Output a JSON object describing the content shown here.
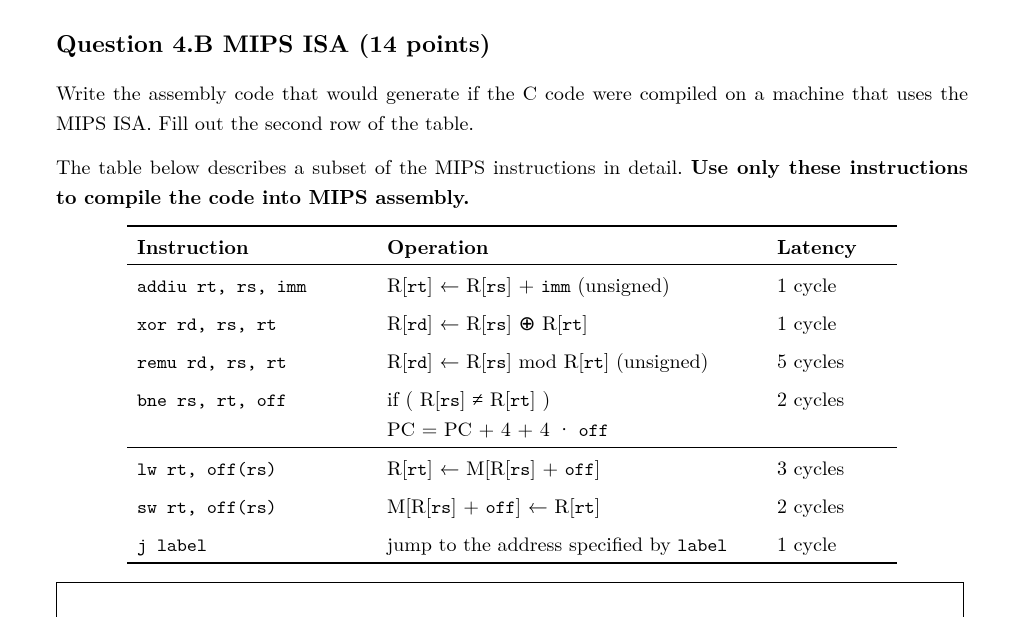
{
  "title_prefix": "Question 4.B MIPS ISA (",
  "title_points": "14 points",
  "title_suffix": ")",
  "para1": "Write the assembly code that would generate if the C code were compiled on a machine that uses the MIPS ISA. Fill out the second row of the table.",
  "para2_a": "The table below describes a subset of the MIPS instructions in detail. ",
  "para2_b": "Use only these instructions to compile the code into MIPS assembly.",
  "table": {
    "headers": {
      "instruction": "Instruction",
      "operation": "Operation",
      "latency": "Latency"
    },
    "rows": [
      {
        "instr": "addiu rt, rs, imm",
        "op_pre": "R[",
        "op_rt": "rt",
        "op_mid1": "] ← R[",
        "op_rs": "rs",
        "op_mid2": "] + ",
        "op_imm": "imm",
        "op_post": " (unsigned)",
        "latency": "1 cycle"
      },
      {
        "instr": "xor rd, rs, rt",
        "op_pre": "R[",
        "op_rd": "rd",
        "op_mid1": "] ← R[",
        "op_rs": "rs",
        "op_mid2": "] ⊕ R[",
        "op_rt": "rt",
        "op_post": "]",
        "latency": "1 cycle"
      },
      {
        "instr": "remu rd, rs, rt",
        "op_pre": "R[",
        "op_rd": "rd",
        "op_mid1": "] ← R[",
        "op_rs": "rs",
        "op_mid2": "] mod R[",
        "op_rt": "rt",
        "op_post": "] (unsigned)",
        "latency": "5 cycles"
      },
      {
        "instr": "bne rs, rt, off",
        "line1_a": "if ( R[",
        "line1_rs": "rs",
        "line1_b": "] ≠ R[",
        "line1_rt": "rt",
        "line1_c": "] )",
        "line2_a": "PC = PC + 4 + 4 · ",
        "line2_off": "off",
        "latency": "2 cycles"
      },
      {
        "instr": "lw rt, off(rs)",
        "op_pre": "R[",
        "op_rt": "rt",
        "op_mid1": "] ← M[R[",
        "op_rs": "rs",
        "op_mid2": "] + ",
        "op_off": "off",
        "op_post": "]",
        "latency": "3 cycles"
      },
      {
        "instr": "sw rt, off(rs)",
        "op_pre": "M[R[",
        "op_rs": "rs",
        "op_mid1": "] + ",
        "op_off": "off",
        "op_mid2": "] ← R[",
        "op_rt": "rt",
        "op_post": "]",
        "latency": "2 cycles"
      },
      {
        "instr": "j label",
        "op_a": "jump to the address specified by ",
        "op_label": "label",
        "latency": "1 cycle"
      }
    ]
  }
}
